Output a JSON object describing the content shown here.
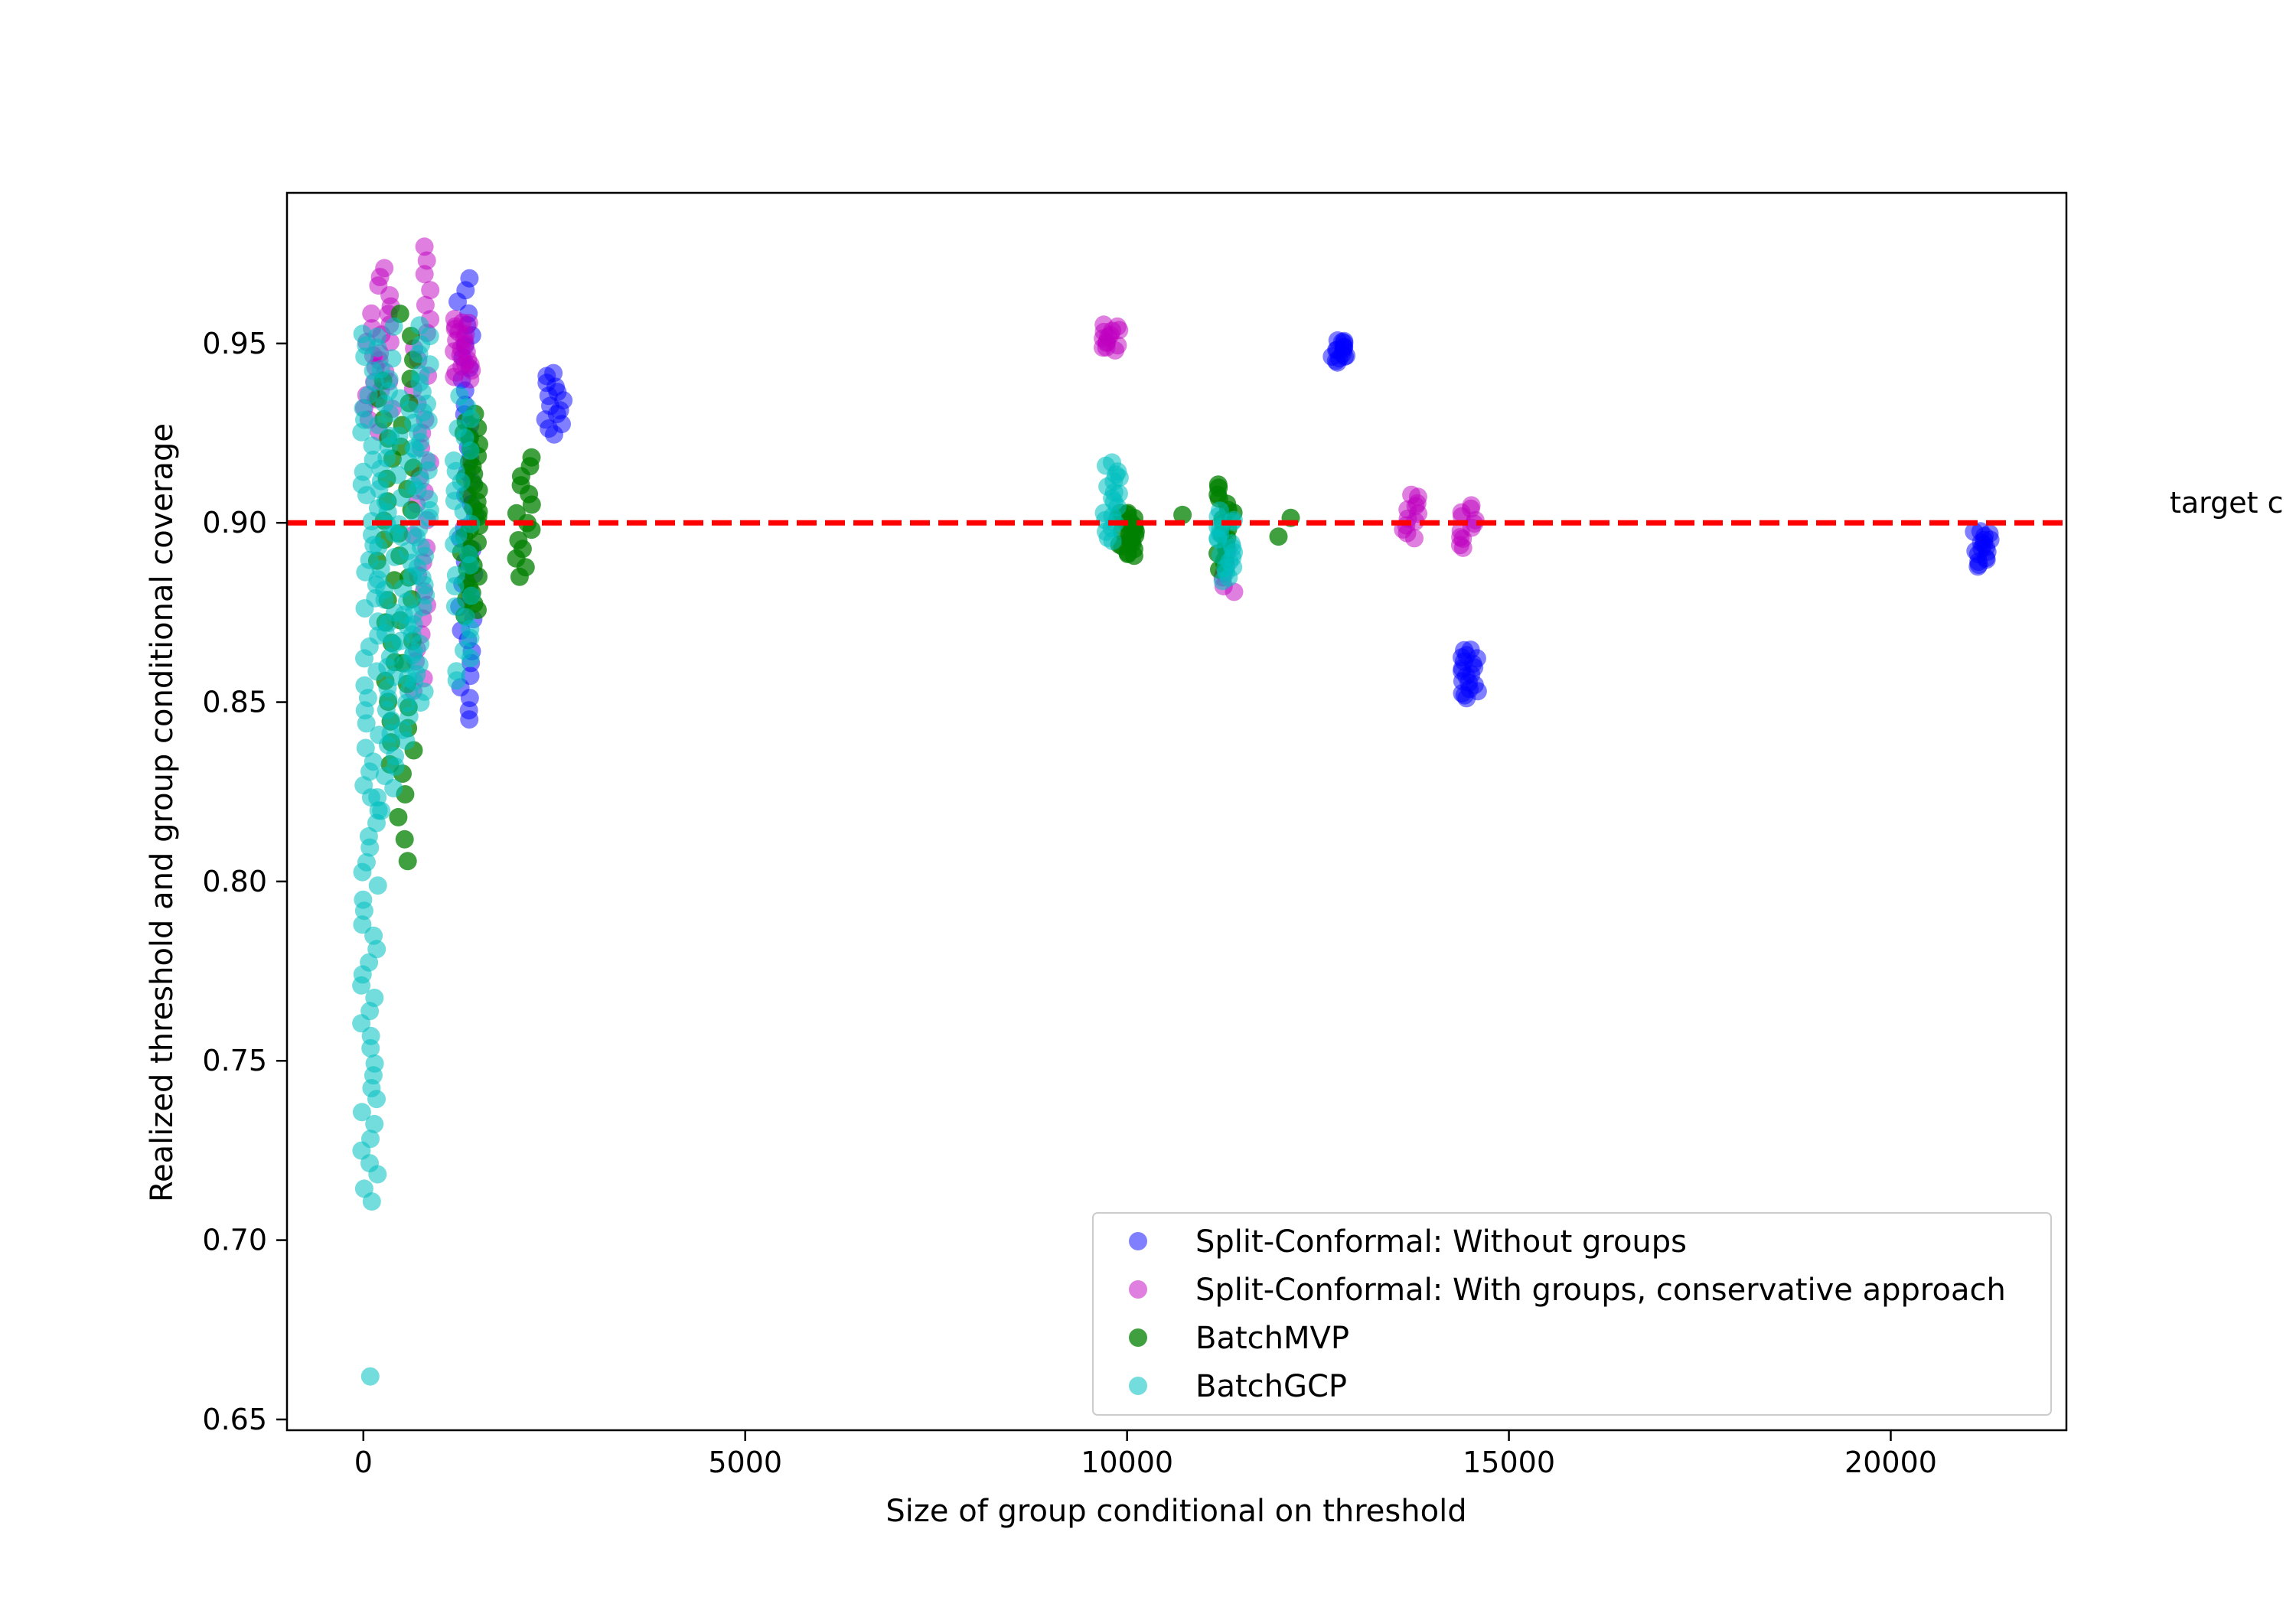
{
  "chart_data": {
    "type": "scatter",
    "title": "",
    "xlabel": "Size of group conditional on threshold",
    "ylabel": "Realized threshold and group conditional coverage",
    "xlim": [
      -1000,
      22300
    ],
    "ylim": [
      0.647,
      0.992
    ],
    "xticks": [
      0,
      5000,
      10000,
      15000,
      20000
    ],
    "xtick_labels": [
      "0",
      "5000",
      "10000",
      "15000",
      "20000"
    ],
    "yticks": [
      0.65,
      0.7,
      0.75,
      0.8,
      0.85,
      0.9,
      0.95
    ],
    "ytick_labels": [
      "0.65",
      "0.70",
      "0.75",
      "0.80",
      "0.85",
      "0.90",
      "0.95"
    ],
    "grid": false,
    "legend_position": "lower-right",
    "reference_line": {
      "y": 0.9,
      "label": "target c",
      "color": "#ff0000",
      "style": "dashed"
    },
    "series": [
      {
        "name": "Split-Conformal: Without groups",
        "color": "#0000ff",
        "alpha": 0.5,
        "clusters": [
          {
            "x": 1350,
            "y_range": [
              0.845,
              0.968
            ],
            "count": 40
          },
          {
            "x": 2500,
            "y_range": [
              0.925,
              0.942
            ],
            "count": 14
          },
          {
            "x": 12800,
            "y_range": [
              0.945,
              0.951
            ],
            "count": 16
          },
          {
            "x": 14480,
            "y_range": [
              0.851,
              0.865
            ],
            "count": 20
          },
          {
            "x": 21200,
            "y_range": [
              0.888,
              0.898
            ],
            "count": 18
          }
        ]
      },
      {
        "name": "Split-Conformal: With groups, conservative approach",
        "color": "#bf00bf",
        "alpha": 0.5,
        "clusters": [
          {
            "x": 90,
            "y_range": [
              0.925,
              0.958
            ],
            "count": 10
          },
          {
            "x": 280,
            "y_range": [
              0.932,
              0.971
            ],
            "count": 16
          },
          {
            "x": 760,
            "y_range": [
              0.853,
              0.977
            ],
            "count": 32
          },
          {
            "x": 1300,
            "y_range": [
              0.94,
              0.957
            ],
            "count": 22
          },
          {
            "x": 9800,
            "y_range": [
              0.948,
              0.955
            ],
            "count": 14
          },
          {
            "x": 11300,
            "y_range": [
              0.881,
              0.893
            ],
            "count": 8
          },
          {
            "x": 13700,
            "y_range": [
              0.896,
              0.908
            ],
            "count": 12
          },
          {
            "x": 14450,
            "y_range": [
              0.893,
              0.905
            ],
            "count": 12
          }
        ]
      },
      {
        "name": "BatchMVP",
        "color": "#008000",
        "alpha": 0.75,
        "clusters": [
          {
            "x": 300,
            "y_range": [
              0.833,
              0.94
            ],
            "count": 20
          },
          {
            "x": 560,
            "y_range": [
              0.806,
              0.958
            ],
            "count": 26
          },
          {
            "x": 1400,
            "y_range": [
              0.874,
              0.93
            ],
            "count": 36
          },
          {
            "x": 2100,
            "y_range": [
              0.885,
              0.918
            ],
            "count": 14
          },
          {
            "x": 10000,
            "y_range": [
              0.891,
              0.903
            ],
            "count": 24
          },
          {
            "x": 10780,
            "y_range": [
              0.902,
              0.903
            ],
            "count": 1
          },
          {
            "x": 11300,
            "y_range": [
              0.887,
              0.911
            ],
            "count": 18
          },
          {
            "x": 12100,
            "y_range": [
              0.896,
              0.901
            ],
            "count": 2
          }
        ]
      },
      {
        "name": "BatchGCP",
        "color": "#00bfbf",
        "alpha": 0.55,
        "clusters": [
          {
            "x": 90,
            "y_range": [
              0.711,
              0.953
            ],
            "count": 70
          },
          {
            "x": 300,
            "y_range": [
              0.82,
              0.955
            ],
            "count": 45
          },
          {
            "x": 560,
            "y_range": [
              0.839,
              0.935
            ],
            "count": 28
          },
          {
            "x": 760,
            "y_range": [
              0.85,
              0.955
            ],
            "count": 40
          },
          {
            "x": 1300,
            "y_range": [
              0.856,
              0.935
            ],
            "count": 28
          },
          {
            "x": 9800,
            "y_range": [
              0.895,
              0.917
            ],
            "count": 20
          },
          {
            "x": 11300,
            "y_range": [
              0.884,
              0.903
            ],
            "count": 20
          }
        ],
        "points": [
          [
            90,
            0.662
          ]
        ]
      }
    ]
  }
}
